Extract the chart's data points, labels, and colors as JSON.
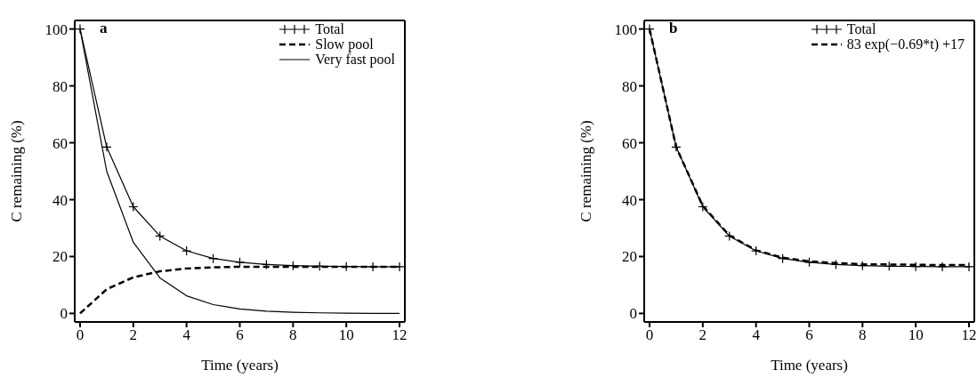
{
  "chart_data": [
    {
      "type": "line",
      "title": "a",
      "xlabel": "Time (years)",
      "ylabel": "C remaining (%)",
      "x": [
        0,
        1,
        2,
        3,
        4,
        5,
        6,
        7,
        8,
        9,
        10,
        11,
        12
      ],
      "xlim": [
        -0.2,
        12.2
      ],
      "xticks": [
        0,
        2,
        4,
        6,
        8,
        10,
        12
      ],
      "ylim": [
        -3,
        103
      ],
      "yticks": [
        0,
        20,
        40,
        60,
        80,
        100
      ],
      "legend": "top right",
      "series": [
        {
          "name": "Total",
          "color": "#000000",
          "marker": "cross",
          "line_style": "solid",
          "values": [
            100,
            58.5,
            37.5,
            27.2,
            22,
            19.3,
            18,
            17.2,
            16.8,
            16.6,
            16.5,
            16.4,
            16.4
          ]
        },
        {
          "name": "Slow pool",
          "color": "#000000",
          "marker": "none",
          "line_style": "dashed",
          "values": [
            0,
            8.5,
            12.7,
            14.8,
            15.8,
            16.2,
            16.4,
            16.4,
            16.4,
            16.4,
            16.4,
            16.4,
            16.4
          ]
        },
        {
          "name": "Very fast pool",
          "color": "#000000",
          "marker": "none",
          "line_style": "solid",
          "values": [
            100,
            50,
            25,
            12.5,
            6.2,
            3.1,
            1.6,
            0.8,
            0.4,
            0.2,
            0.1,
            0,
            0
          ]
        }
      ]
    },
    {
      "type": "line",
      "title": "b",
      "xlabel": "Time (years)",
      "ylabel": "C remaining (%)",
      "x": [
        0,
        1,
        2,
        3,
        4,
        5,
        6,
        7,
        8,
        9,
        10,
        11,
        12
      ],
      "xlim": [
        -0.2,
        12.2
      ],
      "xticks": [
        0,
        2,
        4,
        6,
        8,
        10,
        12
      ],
      "ylim": [
        -3,
        103
      ],
      "yticks": [
        0,
        20,
        40,
        60,
        80,
        100
      ],
      "legend": "top right",
      "series": [
        {
          "name": "Total",
          "color": "#000000",
          "marker": "cross",
          "line_style": "solid",
          "values": [
            100,
            58.5,
            37.5,
            27.2,
            22,
            19.3,
            18,
            17.2,
            16.8,
            16.6,
            16.5,
            16.4,
            16.4
          ]
        },
        {
          "name": "83 exp(−0.69*t) +17",
          "color": "#000000",
          "marker": "none",
          "line_style": "dashed",
          "values": [
            100,
            58.5,
            37.8,
            27.4,
            22.2,
            19.6,
            18.3,
            17.7,
            17.3,
            17.2,
            17.1,
            17,
            17
          ]
        }
      ]
    }
  ]
}
